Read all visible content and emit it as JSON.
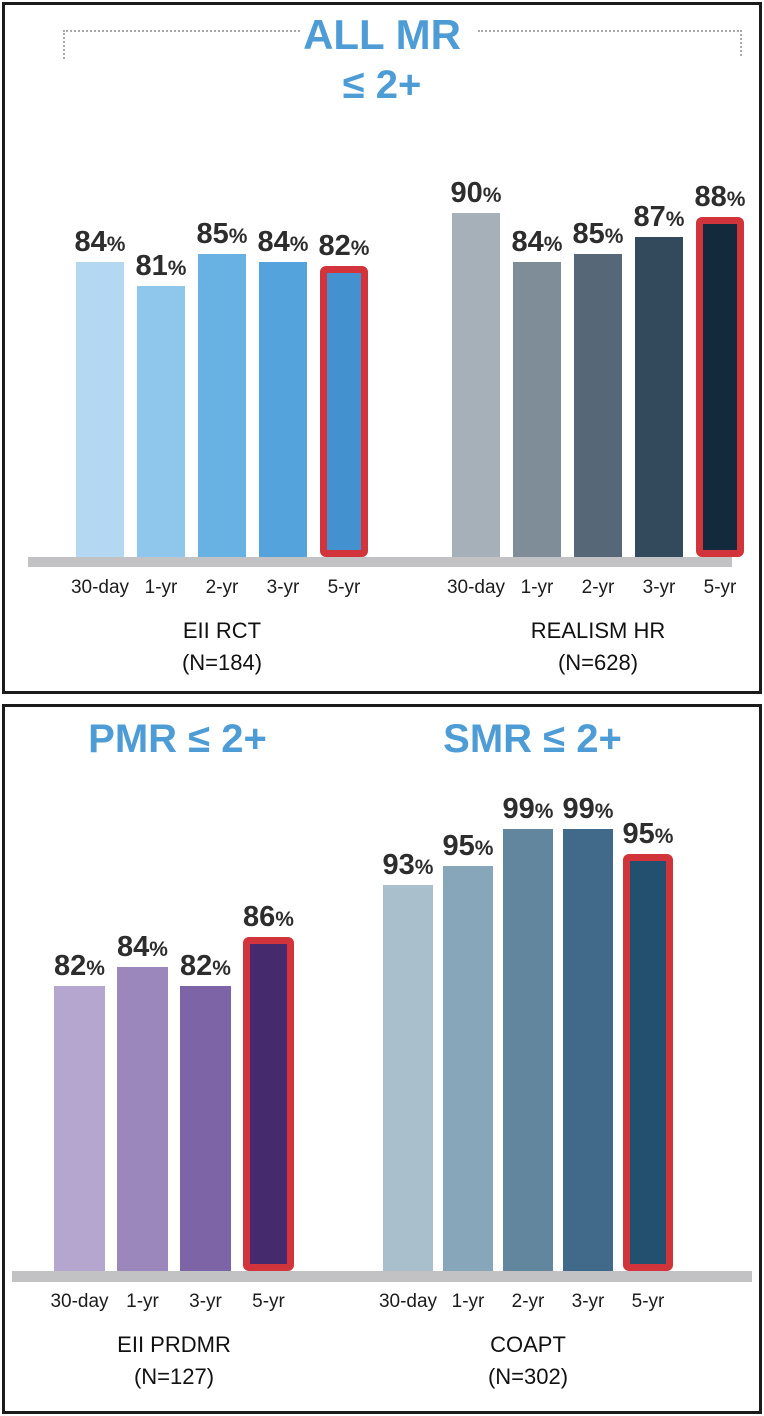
{
  "colors": {
    "title_blue": "#4e9cd6",
    "highlight_red": "#d2343b",
    "axis_strip": "#c2c2c4",
    "label_text": "#2d2d2d",
    "bracket_dots": "#a9a9a9"
  },
  "chart_data": [
    {
      "type": "bar",
      "panel": "ALL MR",
      "title_lines": [
        "ALL MR",
        "≤ 2+"
      ],
      "unit": "%",
      "ylim": [
        48,
        100
      ],
      "grid": false,
      "legend_position": "none",
      "groups": [
        {
          "label": "EII RCT",
          "n_label": "(N=184)",
          "categories": [
            "30-day",
            "1-yr",
            "2-yr",
            "3-yr",
            "5-yr"
          ],
          "values": [
            84,
            81,
            85,
            84,
            82
          ],
          "bar_colors": [
            "#b5d8f2",
            "#8fc6eb",
            "#68b1e3",
            "#55a3dc",
            "#4392cf"
          ],
          "highlight_index": 4
        },
        {
          "label": "REALISM HR",
          "n_label": "(N=628)",
          "categories": [
            "30-day",
            "1-yr",
            "2-yr",
            "3-yr",
            "5-yr"
          ],
          "values": [
            90,
            84,
            85,
            87,
            88
          ],
          "bar_colors": [
            "#a6b0b9",
            "#7f8d99",
            "#566878",
            "#324a5c",
            "#13293c"
          ],
          "highlight_index": 4
        }
      ]
    },
    {
      "type": "bar",
      "panel": "PMR / SMR",
      "group_titles": [
        "PMR ≤ 2+",
        "SMR ≤ 2+"
      ],
      "unit": "%",
      "ylim": [
        51,
        100
      ],
      "grid": false,
      "legend_position": "none",
      "groups": [
        {
          "label": "EII PRDMR",
          "n_label": "(N=127)",
          "categories": [
            "30-day",
            "1-yr",
            "3-yr",
            "5-yr"
          ],
          "values": [
            82,
            84,
            82,
            86
          ],
          "bar_colors": [
            "#b5a6cf",
            "#9c87bd",
            "#7c64a6",
            "#452a6e"
          ],
          "highlight_index": 3
        },
        {
          "label": "COAPT",
          "n_label": "(N=302)",
          "categories": [
            "30-day",
            "1-yr",
            "2-yr",
            "3-yr",
            "5-yr"
          ],
          "values": [
            93,
            95,
            99,
            99,
            95
          ],
          "bar_colors": [
            "#a9bfcb",
            "#87a6b9",
            "#62869e",
            "#40698a",
            "#24506f"
          ],
          "highlight_index": 4
        }
      ]
    }
  ]
}
